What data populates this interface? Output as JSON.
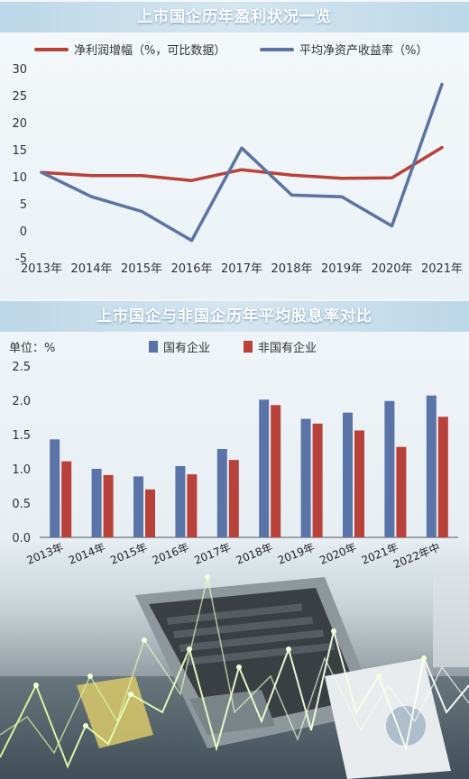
{
  "chart_data": [
    {
      "type": "line",
      "title": "上市国企历年盈利状况一览",
      "x": [
        "2013年",
        "2014年",
        "2015年",
        "2016年",
        "2017年",
        "2018年",
        "2019年",
        "2020年",
        "2021年"
      ],
      "series": [
        {
          "name": "净利润增幅（%，可比数据）",
          "color": "#b8423a",
          "values": [
            10.8,
            10.2,
            10.2,
            9.3,
            11.3,
            10.3,
            9.7,
            9.8,
            15.4
          ]
        },
        {
          "name": "平均净资产收益率（%）",
          "color": "#5b74a0",
          "values": [
            10.8,
            6.3,
            3.6,
            -1.8,
            15.3,
            6.6,
            6.3,
            0.9,
            27.1
          ]
        }
      ],
      "yticks": [
        "30",
        "25",
        "20",
        "15",
        "10",
        "5",
        "0",
        "-5"
      ],
      "ylim": [
        -5,
        30
      ],
      "legend": "top",
      "grid": false
    },
    {
      "type": "bar",
      "title": "上市国企与非国企历年平均股息率对比",
      "ylabel": "单位：%",
      "categories": [
        "2013年",
        "2014年",
        "2015年",
        "2016年",
        "2017年",
        "2018年",
        "2019年",
        "2020年",
        "2021年",
        "2022年中"
      ],
      "series": [
        {
          "name": "国有企业",
          "color": "#5b74a8",
          "values": [
            1.43,
            1.0,
            0.89,
            1.04,
            1.29,
            2.01,
            1.73,
            1.82,
            1.99,
            2.07
          ]
        },
        {
          "name": "非国有企业",
          "color": "#b8423a",
          "values": [
            1.11,
            0.91,
            0.7,
            0.92,
            1.13,
            1.93,
            1.66,
            1.56,
            1.32,
            1.76
          ]
        }
      ],
      "yticks": [
        "2.5",
        "2.0",
        "1.5",
        "1.0",
        "0.5",
        "0.0"
      ],
      "ylim": [
        0,
        2.5
      ],
      "legend": "top",
      "grid": false
    }
  ]
}
